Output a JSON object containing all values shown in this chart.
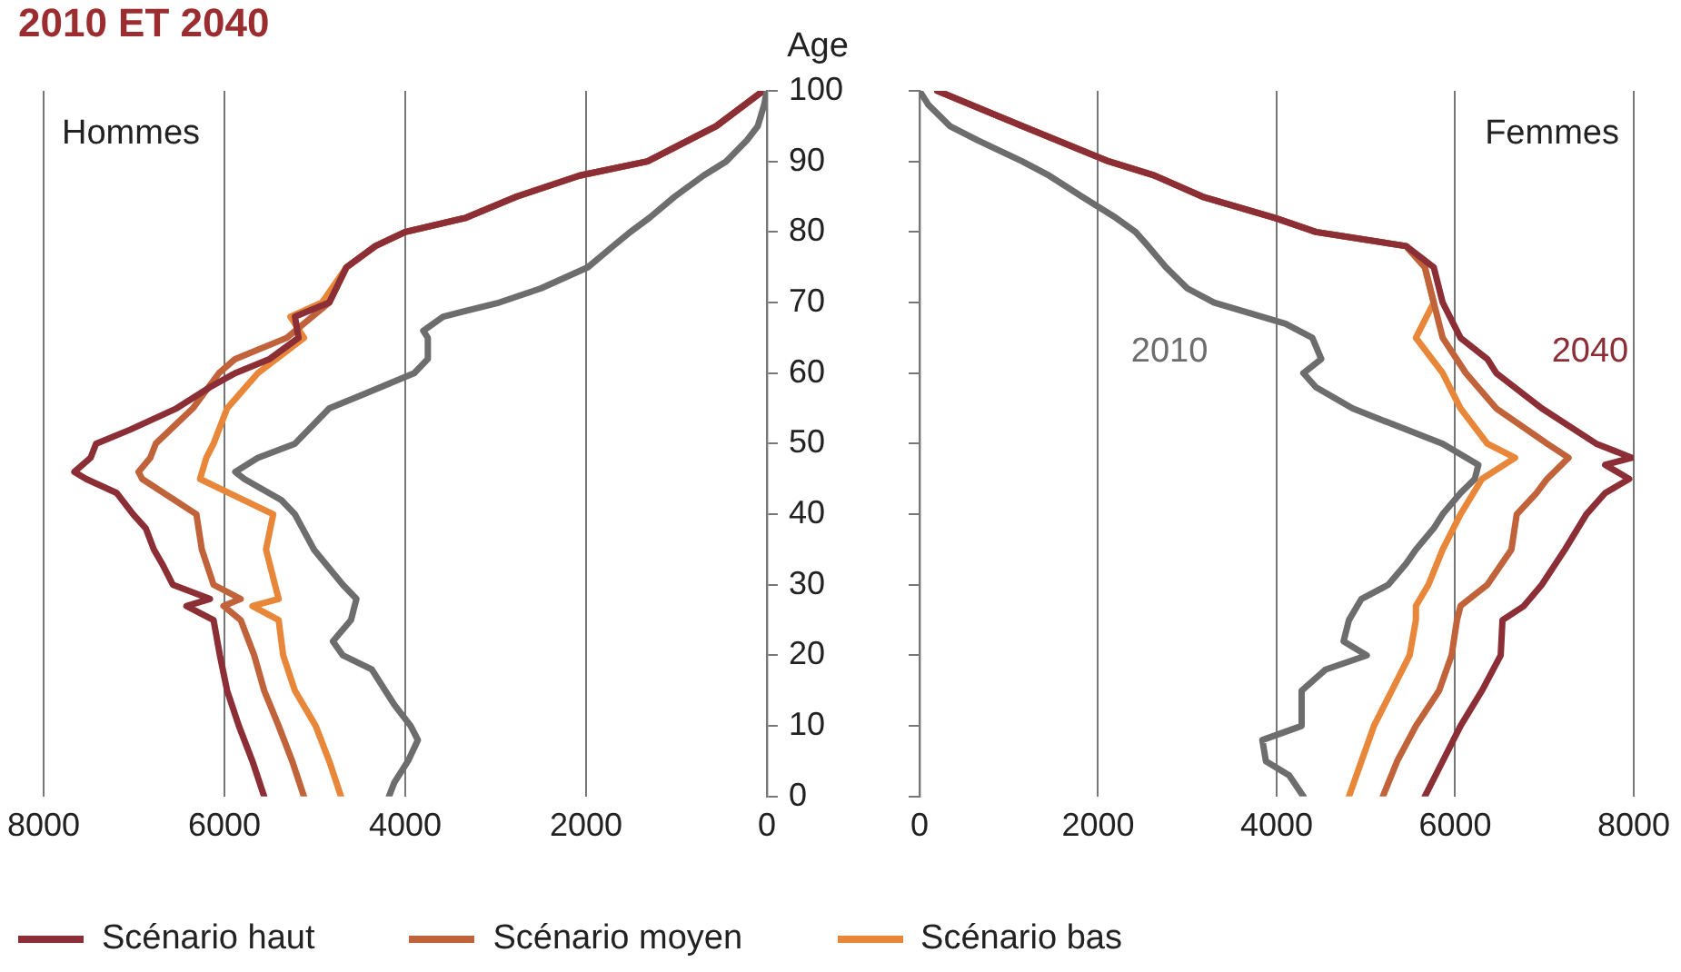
{
  "chart_data": [
    {
      "type": "line",
      "title": "2010 ET 2040",
      "orientation": "horizontal",
      "xlim": [
        8000,
        0
      ],
      "xticks": [
        0,
        2000,
        4000,
        6000,
        8000
      ],
      "ylim": [
        0,
        100
      ],
      "yticks": [
        0,
        10,
        20,
        30,
        40,
        50,
        60,
        70,
        80,
        90,
        100
      ],
      "ylabel": "Age",
      "grid": "x",
      "legend": "bottom",
      "annotations": [
        "Hommes"
      ],
      "series": [
        {
          "color": "#6d6d6d",
          "x": [
            0,
            2,
            5,
            8,
            10,
            13,
            15,
            18,
            20,
            22,
            25,
            28,
            30,
            35,
            40,
            42,
            45,
            46,
            48,
            50,
            55,
            57,
            60,
            62,
            65,
            66,
            68,
            70,
            72,
            75,
            78,
            80,
            82,
            85,
            88,
            90,
            93,
            95,
            98,
            100
          ],
          "values": [
            4180,
            4120,
            3970,
            3860,
            3940,
            4120,
            4220,
            4370,
            4690,
            4800,
            4600,
            4540,
            4690,
            5010,
            5220,
            5370,
            5780,
            5880,
            5630,
            5220,
            4840,
            4460,
            3900,
            3750,
            3750,
            3800,
            3580,
            2960,
            2500,
            1980,
            1700,
            1510,
            1300,
            1020,
            700,
            450,
            220,
            100,
            30,
            0
          ]
        },
        {
          "name": "Scénario haut",
          "color": "#8b2e35",
          "x": [
            0,
            5,
            10,
            15,
            20,
            25,
            27,
            28,
            30,
            33,
            35,
            38,
            40,
            43,
            45,
            46,
            48,
            50,
            52,
            55,
            58,
            60,
            62,
            65,
            68,
            70,
            75,
            78,
            80,
            82,
            85,
            88,
            90,
            95,
            100
          ],
          "values": [
            5560,
            5690,
            5840,
            5970,
            6050,
            6120,
            6420,
            6160,
            6570,
            6690,
            6780,
            6870,
            7010,
            7190,
            7530,
            7660,
            7480,
            7420,
            7040,
            6530,
            6160,
            5880,
            5500,
            5180,
            5220,
            4840,
            4650,
            4330,
            4000,
            3330,
            2770,
            2070,
            1320,
            560,
            40
          ]
        },
        {
          "name": "Scénario moyen",
          "color": "#c0623a",
          "x": [
            0,
            5,
            10,
            15,
            20,
            25,
            27,
            28,
            30,
            35,
            40,
            45,
            46,
            48,
            50,
            55,
            60,
            62,
            65,
            70,
            75,
            78,
            80,
            82,
            85,
            88,
            90,
            95,
            100
          ],
          "values": [
            5120,
            5250,
            5400,
            5560,
            5670,
            5820,
            6010,
            5820,
            6120,
            6250,
            6310,
            6910,
            6950,
            6820,
            6760,
            6350,
            6060,
            5880,
            5310,
            4840,
            4650,
            4330,
            4000,
            3330,
            2770,
            2070,
            1320,
            560,
            40
          ]
        },
        {
          "name": "Scénario bas",
          "color": "#e8873a",
          "x": [
            0,
            5,
            10,
            15,
            20,
            25,
            27,
            28,
            30,
            35,
            40,
            45,
            48,
            50,
            55,
            60,
            65,
            68,
            70,
            75,
            78,
            80,
            82,
            85,
            88,
            90,
            95,
            100
          ],
          "values": [
            4710,
            4840,
            4990,
            5220,
            5350,
            5400,
            5690,
            5400,
            5440,
            5540,
            5460,
            6270,
            6200,
            6120,
            5970,
            5630,
            5120,
            5270,
            4920,
            4650,
            4330,
            4000,
            3330,
            2770,
            2070,
            1320,
            560,
            40
          ]
        }
      ]
    },
    {
      "type": "line",
      "orientation": "horizontal",
      "xlim": [
        0,
        8000
      ],
      "xticks": [
        0,
        2000,
        4000,
        6000,
        8000
      ],
      "ylim": [
        0,
        100
      ],
      "yticks": [
        0,
        10,
        20,
        30,
        40,
        50,
        60,
        70,
        80,
        90,
        100
      ],
      "tick_labels": "x",
      "grid": "x",
      "annotations": [
        "Femmes",
        "2010",
        "2040"
      ],
      "series": [
        {
          "color": "#6d6d6d",
          "x": [
            0,
            3,
            5,
            8,
            10,
            15,
            18,
            20,
            22,
            25,
            28,
            30,
            33,
            35,
            38,
            40,
            43,
            45,
            47,
            50,
            53,
            55,
            58,
            60,
            62,
            65,
            67,
            70,
            72,
            75,
            78,
            80,
            82,
            85,
            88,
            90,
            93,
            95,
            98,
            100
          ],
          "values": [
            4300,
            4140,
            3880,
            3840,
            4280,
            4280,
            4550,
            5010,
            4750,
            4810,
            4950,
            5250,
            5450,
            5560,
            5760,
            5860,
            6060,
            6220,
            6260,
            5860,
            5250,
            4850,
            4440,
            4300,
            4500,
            4400,
            4100,
            3300,
            3000,
            2760,
            2560,
            2420,
            2200,
            1820,
            1450,
            1150,
            650,
            340,
            100,
            0
          ]
        },
        {
          "color": "#8b2e35",
          "x": [
            0,
            5,
            10,
            15,
            20,
            25,
            27,
            30,
            35,
            40,
            43,
            45,
            47,
            48,
            50,
            55,
            60,
            62,
            65,
            70,
            75,
            78,
            80,
            82,
            85,
            88,
            90,
            95,
            100
          ],
          "values": [
            5660,
            5860,
            6060,
            6300,
            6510,
            6530,
            6770,
            6970,
            7230,
            7470,
            7680,
            7950,
            7680,
            7980,
            7580,
            6970,
            6460,
            6360,
            6060,
            5860,
            5760,
            5450,
            4440,
            3980,
            3170,
            2630,
            2120,
            1150,
            200
          ]
        },
        {
          "color": "#c0623a",
          "x": [
            0,
            5,
            10,
            15,
            20,
            25,
            27,
            30,
            35,
            40,
            43,
            45,
            48,
            50,
            55,
            60,
            65,
            70,
            75,
            78,
            80,
            82,
            85,
            88,
            90,
            95,
            100
          ],
          "values": [
            5190,
            5350,
            5560,
            5820,
            5960,
            6020,
            6060,
            6360,
            6630,
            6690,
            6910,
            7030,
            7270,
            7030,
            6460,
            6120,
            5860,
            5760,
            5660,
            5450,
            4440,
            3980,
            3170,
            2630,
            2120,
            1150,
            200
          ]
        },
        {
          "color": "#e8873a",
          "x": [
            0,
            5,
            10,
            15,
            20,
            25,
            27,
            30,
            35,
            40,
            45,
            48,
            50,
            55,
            60,
            65,
            70,
            75,
            78,
            80,
            82,
            85,
            88,
            90,
            95,
            100
          ],
          "values": [
            4810,
            4950,
            5090,
            5290,
            5490,
            5560,
            5560,
            5700,
            5860,
            6060,
            6300,
            6670,
            6360,
            6060,
            5860,
            5560,
            5760,
            5660,
            5450,
            4440,
            3980,
            3170,
            2630,
            2120,
            1150,
            200
          ]
        }
      ]
    }
  ]
}
